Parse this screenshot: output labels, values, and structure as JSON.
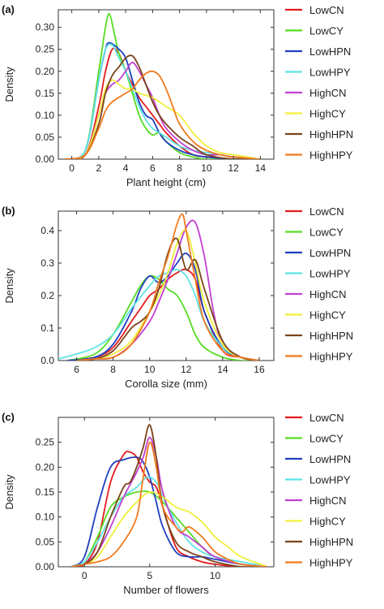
{
  "chart_data": [
    {
      "panel_label": "(a)",
      "type": "line",
      "xlabel": "Plant height (cm)",
      "ylabel": "Density",
      "xlim": [
        -1,
        15
      ],
      "ylim": [
        0,
        0.34
      ],
      "xticks": [
        0,
        2,
        4,
        6,
        8,
        10,
        12,
        14
      ],
      "yticks": [
        0.0,
        0.05,
        0.1,
        0.15,
        0.2,
        0.25,
        0.3
      ],
      "ytick_labels": [
        "0.00",
        "0.05",
        "0.10",
        "0.15",
        "0.20",
        "0.25",
        "0.30"
      ],
      "legend_position": "right",
      "series": [
        {
          "name": "LowCN",
          "color": "#e41a1c",
          "x": [
            -0.5,
            1,
            2,
            2.5,
            3,
            3.5,
            4,
            4.5,
            5,
            5.5,
            6,
            6.5,
            7,
            8,
            9,
            10,
            12,
            14
          ],
          "y": [
            0,
            0.01,
            0.12,
            0.2,
            0.25,
            0.24,
            0.2,
            0.17,
            0.14,
            0.12,
            0.1,
            0.08,
            0.06,
            0.03,
            0.01,
            0.005,
            0,
            0
          ]
        },
        {
          "name": "LowCY",
          "color": "#55dd22",
          "x": [
            -0.5,
            1,
            2,
            2.5,
            2.8,
            3.2,
            3.5,
            4,
            4.5,
            5,
            5.5,
            6,
            6.5,
            7,
            8,
            9,
            10,
            12,
            14
          ],
          "y": [
            0,
            0.02,
            0.2,
            0.3,
            0.33,
            0.28,
            0.24,
            0.2,
            0.15,
            0.1,
            0.07,
            0.055,
            0.06,
            0.04,
            0.015,
            0.005,
            0,
            0,
            0
          ]
        },
        {
          "name": "LowHPN",
          "color": "#1f3fbf",
          "x": [
            -0.5,
            1,
            2,
            2.5,
            2.8,
            3.5,
            4,
            4.5,
            5,
            5.5,
            6,
            6.5,
            7,
            8,
            9,
            10,
            12,
            14
          ],
          "y": [
            0,
            0.02,
            0.18,
            0.25,
            0.265,
            0.25,
            0.23,
            0.18,
            0.13,
            0.1,
            0.09,
            0.06,
            0.04,
            0.02,
            0.01,
            0.005,
            0,
            0
          ]
        },
        {
          "name": "LowHPY",
          "color": "#5fe3e3",
          "x": [
            -0.5,
            1,
            2,
            2.5,
            3,
            3.5,
            4,
            4.5,
            5,
            5.5,
            6,
            6.5,
            7,
            8,
            9,
            10,
            11,
            12,
            14
          ],
          "y": [
            0,
            0.02,
            0.18,
            0.25,
            0.26,
            0.23,
            0.2,
            0.16,
            0.12,
            0.09,
            0.07,
            0.06,
            0.05,
            0.03,
            0.02,
            0.015,
            0.01,
            0.005,
            0
          ]
        },
        {
          "name": "HighCN",
          "color": "#c13fd0",
          "x": [
            -0.5,
            1,
            2,
            2.5,
            3,
            3.5,
            4,
            4.5,
            5,
            5.5,
            6,
            6.5,
            7,
            8,
            9,
            10,
            11,
            12,
            14
          ],
          "y": [
            0,
            0.01,
            0.1,
            0.15,
            0.17,
            0.18,
            0.2,
            0.22,
            0.2,
            0.17,
            0.14,
            0.1,
            0.07,
            0.04,
            0.02,
            0.01,
            0.01,
            0.005,
            0
          ]
        },
        {
          "name": "HighCY",
          "color": "#f0f03c",
          "x": [
            -0.5,
            1,
            2,
            2.5,
            3,
            3.5,
            4,
            4.5,
            5,
            6,
            7,
            8,
            9,
            10,
            11,
            12,
            13,
            14
          ],
          "y": [
            0,
            0.01,
            0.1,
            0.16,
            0.18,
            0.17,
            0.16,
            0.16,
            0.15,
            0.14,
            0.12,
            0.1,
            0.06,
            0.03,
            0.015,
            0.01,
            0.005,
            0
          ]
        },
        {
          "name": "HighHPN",
          "color": "#7a4418",
          "x": [
            -0.5,
            1,
            2,
            2.5,
            3,
            3.5,
            4,
            4.5,
            5,
            5.5,
            6,
            6.5,
            7,
            8,
            9,
            10,
            12,
            14
          ],
          "y": [
            0,
            0.01,
            0.08,
            0.15,
            0.19,
            0.21,
            0.23,
            0.235,
            0.21,
            0.17,
            0.13,
            0.1,
            0.08,
            0.05,
            0.03,
            0.01,
            0,
            0
          ]
        },
        {
          "name": "HighHPY",
          "color": "#f07a1e",
          "x": [
            -0.5,
            1,
            2,
            2.5,
            3,
            4,
            4.5,
            5,
            5.5,
            6,
            6.5,
            7,
            7.5,
            8,
            9,
            10,
            11,
            12,
            14
          ],
          "y": [
            0,
            0.01,
            0.07,
            0.11,
            0.13,
            0.15,
            0.16,
            0.18,
            0.195,
            0.2,
            0.19,
            0.16,
            0.12,
            0.08,
            0.04,
            0.02,
            0.01,
            0.005,
            0
          ]
        }
      ]
    },
    {
      "panel_label": "(b)",
      "type": "line",
      "xlabel": "Corolla size (mm)",
      "ylabel": "Density",
      "xlim": [
        5,
        16.8
      ],
      "ylim": [
        0,
        0.46
      ],
      "xticks": [
        6,
        8,
        10,
        12,
        14,
        16
      ],
      "yticks": [
        0.0,
        0.1,
        0.2,
        0.3,
        0.4
      ],
      "ytick_labels": [
        "0.0",
        "0.1",
        "0.2",
        "0.3",
        "0.4"
      ],
      "legend_position": "right",
      "series": [
        {
          "name": "LowCN",
          "color": "#e41a1c",
          "x": [
            5.5,
            7,
            8,
            9,
            9.5,
            10,
            10.5,
            11,
            11.5,
            12,
            12.5,
            13,
            14,
            15,
            16
          ],
          "y": [
            0,
            0.01,
            0.04,
            0.12,
            0.16,
            0.2,
            0.22,
            0.25,
            0.27,
            0.28,
            0.25,
            0.15,
            0.03,
            0.01,
            0
          ]
        },
        {
          "name": "LowCY",
          "color": "#55dd22",
          "x": [
            5.5,
            7,
            8,
            9,
            9.5,
            10,
            10.5,
            11,
            11.5,
            12,
            12.5,
            13,
            14,
            15,
            16
          ],
          "y": [
            0,
            0.02,
            0.08,
            0.18,
            0.23,
            0.26,
            0.25,
            0.22,
            0.2,
            0.15,
            0.08,
            0.04,
            0.01,
            0,
            0
          ]
        },
        {
          "name": "LowHPN",
          "color": "#1f3fbf",
          "x": [
            5.5,
            7,
            8,
            9,
            9.5,
            10,
            10.5,
            11,
            11.5,
            12,
            12.5,
            13,
            14,
            15,
            16
          ],
          "y": [
            0,
            0.01,
            0.05,
            0.15,
            0.22,
            0.26,
            0.24,
            0.26,
            0.3,
            0.33,
            0.28,
            0.15,
            0.04,
            0.01,
            0
          ]
        },
        {
          "name": "LowHPY",
          "color": "#5fe3e3",
          "x": [
            5,
            6,
            7,
            8,
            9,
            10,
            10.5,
            11,
            11.5,
            12,
            12.5,
            13,
            14,
            15,
            16
          ],
          "y": [
            0.005,
            0.02,
            0.04,
            0.08,
            0.16,
            0.23,
            0.26,
            0.27,
            0.28,
            0.26,
            0.2,
            0.12,
            0.04,
            0.01,
            0
          ]
        },
        {
          "name": "HighCN",
          "color": "#c13fd0",
          "x": [
            6,
            7,
            8,
            9,
            10,
            10.5,
            11,
            11.5,
            12,
            12.5,
            13,
            13.5,
            14,
            15,
            16
          ],
          "y": [
            0,
            0.005,
            0.01,
            0.05,
            0.12,
            0.18,
            0.25,
            0.33,
            0.41,
            0.425,
            0.32,
            0.15,
            0.05,
            0.01,
            0
          ]
        },
        {
          "name": "HighCY",
          "color": "#f0f03c",
          "x": [
            6,
            7,
            8,
            9,
            10,
            10.5,
            11,
            11.5,
            12,
            12.5,
            13,
            14,
            15,
            16
          ],
          "y": [
            0,
            0.005,
            0.02,
            0.06,
            0.15,
            0.2,
            0.27,
            0.36,
            0.4,
            0.3,
            0.18,
            0.05,
            0.01,
            0
          ]
        },
        {
          "name": "HighHPN",
          "color": "#7a4418",
          "x": [
            6,
            7,
            8,
            9,
            9.5,
            10,
            10.5,
            11,
            11.5,
            12,
            12.5,
            13,
            14,
            15,
            16
          ],
          "y": [
            0,
            0.005,
            0.03,
            0.1,
            0.12,
            0.15,
            0.22,
            0.33,
            0.375,
            0.28,
            0.31,
            0.22,
            0.06,
            0.01,
            0
          ]
        },
        {
          "name": "HighHPY",
          "color": "#f07a1e",
          "x": [
            6,
            7,
            8,
            9,
            10,
            10.5,
            11,
            11.5,
            11.8,
            12,
            12.5,
            13,
            14,
            15,
            16
          ],
          "y": [
            0,
            0.005,
            0.01,
            0.05,
            0.15,
            0.24,
            0.32,
            0.42,
            0.45,
            0.4,
            0.25,
            0.12,
            0.03,
            0.01,
            0
          ]
        }
      ]
    },
    {
      "panel_label": "(c)",
      "type": "line",
      "xlabel": "Number of flowers",
      "ylabel": "Density",
      "xlim": [
        -2,
        14.5
      ],
      "ylim": [
        0,
        0.3
      ],
      "xticks": [
        0,
        5,
        10
      ],
      "yticks": [
        0.0,
        0.05,
        0.1,
        0.15,
        0.2,
        0.25
      ],
      "ytick_labels": [
        "0.00",
        "0.05",
        "0.10",
        "0.15",
        "0.20",
        "0.25"
      ],
      "legend_position": "right",
      "series": [
        {
          "name": "LowCN",
          "color": "#e41a1c",
          "x": [
            -1,
            0,
            1,
            2,
            3,
            3.5,
            4,
            4.5,
            5,
            5.5,
            6,
            7,
            8,
            9,
            10,
            12,
            14
          ],
          "y": [
            0,
            0.005,
            0.05,
            0.17,
            0.225,
            0.23,
            0.22,
            0.19,
            0.17,
            0.16,
            0.12,
            0.04,
            0.02,
            0.01,
            0.005,
            0,
            0
          ]
        },
        {
          "name": "LowCY",
          "color": "#55dd22",
          "x": [
            -1,
            0,
            1,
            2,
            3,
            4,
            5,
            6,
            7,
            8,
            9,
            10,
            12,
            14
          ],
          "y": [
            0,
            0.01,
            0.06,
            0.12,
            0.14,
            0.15,
            0.15,
            0.13,
            0.1,
            0.07,
            0.04,
            0.02,
            0.005,
            0
          ]
        },
        {
          "name": "LowHPN",
          "color": "#1f3fbf",
          "x": [
            -1,
            0,
            1,
            2,
            3,
            4,
            4.5,
            5,
            5.5,
            6,
            7,
            8,
            9,
            10,
            12,
            14
          ],
          "y": [
            0,
            0.02,
            0.12,
            0.2,
            0.215,
            0.22,
            0.21,
            0.18,
            0.13,
            0.08,
            0.03,
            0.02,
            0.02,
            0.015,
            0.005,
            0
          ]
        },
        {
          "name": "LowHPY",
          "color": "#5fe3e3",
          "x": [
            -1,
            0,
            1,
            2,
            3,
            4,
            4.8,
            5.5,
            6,
            7,
            8,
            9,
            10,
            12,
            14
          ],
          "y": [
            0,
            0.01,
            0.05,
            0.1,
            0.14,
            0.16,
            0.18,
            0.17,
            0.14,
            0.09,
            0.05,
            0.03,
            0.02,
            0.01,
            0
          ]
        },
        {
          "name": "HighCN",
          "color": "#c13fd0",
          "x": [
            -1,
            0,
            1,
            2,
            3,
            4,
            4.5,
            5,
            5.5,
            6,
            7,
            8,
            9,
            10,
            12,
            14
          ],
          "y": [
            0,
            0.005,
            0.03,
            0.08,
            0.14,
            0.19,
            0.22,
            0.26,
            0.22,
            0.15,
            0.08,
            0.06,
            0.04,
            0.02,
            0.005,
            0
          ]
        },
        {
          "name": "HighCY",
          "color": "#f0f03c",
          "x": [
            -1,
            0,
            1,
            2,
            3,
            4,
            5,
            6,
            7,
            8,
            9,
            10,
            11,
            12,
            14
          ],
          "y": [
            0,
            0.005,
            0.02,
            0.06,
            0.1,
            0.13,
            0.15,
            0.14,
            0.12,
            0.11,
            0.09,
            0.06,
            0.04,
            0.02,
            0
          ]
        },
        {
          "name": "HighHPN",
          "color": "#7a4418",
          "x": [
            -1,
            0,
            1,
            2,
            3,
            3.5,
            4,
            4.5,
            5,
            5.5,
            6,
            7,
            8,
            9,
            10,
            12,
            14
          ],
          "y": [
            0,
            0.005,
            0.03,
            0.1,
            0.16,
            0.17,
            0.2,
            0.24,
            0.285,
            0.22,
            0.12,
            0.05,
            0.03,
            0.02,
            0.01,
            0,
            0
          ]
        },
        {
          "name": "HighHPY",
          "color": "#f07a1e",
          "x": [
            -1,
            0,
            1,
            2,
            3,
            4,
            4.5,
            5,
            5.5,
            6,
            7,
            7.5,
            8,
            9,
            10,
            11,
            12,
            14
          ],
          "y": [
            0,
            0.005,
            0.01,
            0.02,
            0.05,
            0.1,
            0.18,
            0.25,
            0.2,
            0.12,
            0.08,
            0.07,
            0.08,
            0.06,
            0.03,
            0.015,
            0.005,
            0
          ]
        }
      ]
    }
  ]
}
